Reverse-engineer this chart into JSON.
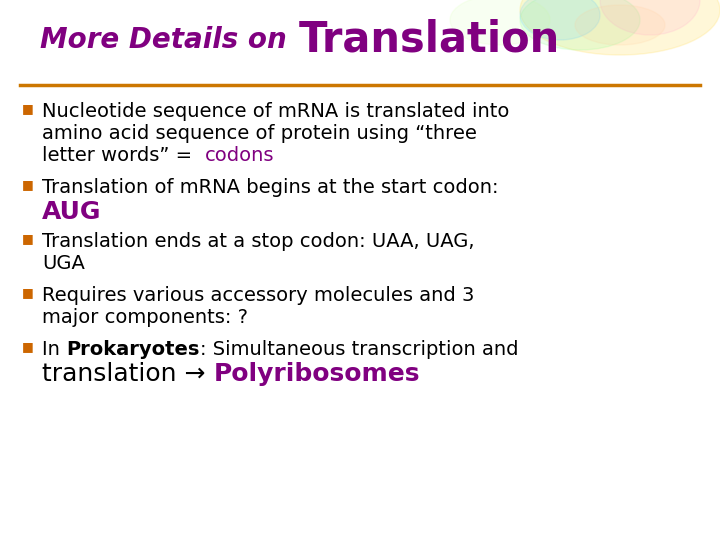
{
  "title_italic_text": "More Details on ",
  "title_bold_text": "Translation",
  "title_color": "#800080",
  "separator_color": "#CC7700",
  "bg_color": "#ffffff",
  "bullet_color": "#CC6600",
  "text_color": "#000000",
  "purple": "#800080",
  "bullets": [
    {
      "lines": [
        [
          {
            "text": "Nucleotide sequence of mRNA is translated into",
            "bold": false,
            "color": "#000000"
          }
        ],
        [
          {
            "text": "amino acid sequence of protein using “three",
            "bold": false,
            "color": "#000000"
          }
        ],
        [
          {
            "text": "letter words” =  ",
            "bold": false,
            "color": "#000000"
          },
          {
            "text": "codons",
            "bold": false,
            "color": "#800080"
          }
        ]
      ]
    },
    {
      "lines": [
        [
          {
            "text": "Translation of mRNA begins at the start codon:",
            "bold": false,
            "color": "#000000"
          }
        ],
        [
          {
            "text": "AUG",
            "bold": true,
            "color": "#800080"
          }
        ]
      ]
    },
    {
      "lines": [
        [
          {
            "text": "Translation ends at a stop codon: UAA, UAG,",
            "bold": false,
            "color": "#000000"
          }
        ],
        [
          {
            "text": "UGA",
            "bold": false,
            "color": "#000000"
          }
        ]
      ]
    },
    {
      "lines": [
        [
          {
            "text": "Requires various accessory molecules and 3",
            "bold": false,
            "color": "#000000"
          }
        ],
        [
          {
            "text": "major components: ?",
            "bold": false,
            "color": "#000000"
          }
        ]
      ]
    },
    {
      "lines": [
        [
          {
            "text": "In ",
            "bold": false,
            "color": "#000000"
          },
          {
            "text": "Prokaryotes",
            "bold": true,
            "color": "#000000"
          },
          {
            "text": ": Simultaneous transcription and",
            "bold": false,
            "color": "#000000"
          }
        ],
        [
          {
            "text": "translation → ",
            "bold": false,
            "color": "#000000"
          },
          {
            "text": "Polyribosomes",
            "bold": true,
            "color": "#800080"
          }
        ]
      ]
    }
  ],
  "title_italic_size": 20,
  "title_bold_size": 30,
  "bullet_size": 14,
  "aug_size": 18,
  "polyribosomes_size": 16
}
